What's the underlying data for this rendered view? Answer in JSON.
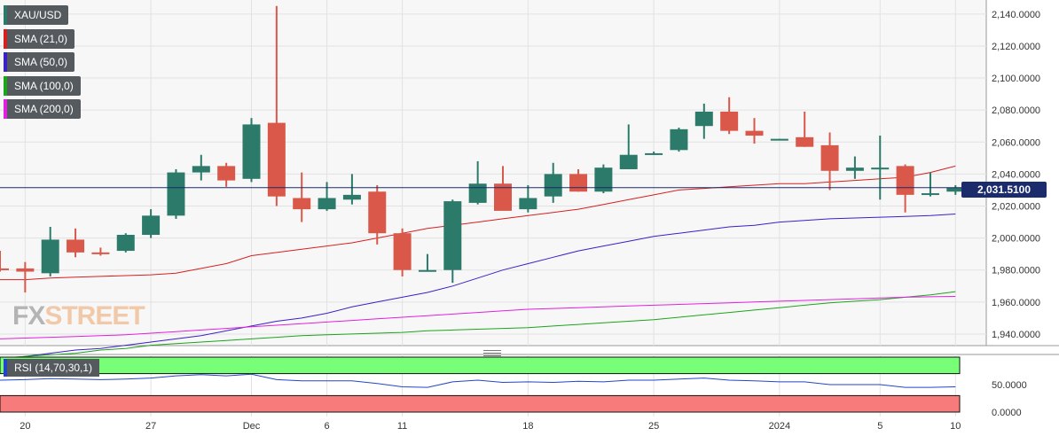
{
  "symbol": "XAU/USD",
  "indicators": [
    {
      "label": "SMA (21,0)",
      "color": "#d62020"
    },
    {
      "label": "SMA (50,0)",
      "color": "#3b1fc8"
    },
    {
      "label": "SMA (100,0)",
      "color": "#1aa51a"
    },
    {
      "label": "SMA (200,0)",
      "color": "#e020e0"
    }
  ],
  "rsi_label": "RSI (14,70,30,1)",
  "current_price_label": "2,031.5100",
  "watermark": {
    "part1": "FX",
    "part2": "STREET"
  },
  "colors": {
    "up": "#2b7a6a",
    "down": "#d9584a",
    "symbol_tag": "#2b7a6a",
    "rsi_line": "#2346c8",
    "rsi_overbought": "#77ff77",
    "rsi_oversold": "#f77b7b",
    "price_line": "#1b2b6b"
  },
  "chart_data": {
    "type": "candlestick",
    "ylim": [
      1930,
      2146
    ],
    "y_ticks": [
      1940,
      1960,
      1980,
      2000,
      2020,
      2040,
      2060,
      2080,
      2100,
      2120,
      2140
    ],
    "y_tick_labels": [
      "1,940.0000",
      "1,960.0000",
      "1,980.0000",
      "2,000.0000",
      "2,020.0000",
      "2,040.0000",
      "2,060.0000",
      "2,080.0000",
      "2,100.0000",
      "2,120.0000",
      "2,140.0000"
    ],
    "x_tick_labels": [
      {
        "label": "20",
        "index": 1
      },
      {
        "label": "27",
        "index": 6
      },
      {
        "label": "Dec",
        "index": 10
      },
      {
        "label": "6",
        "index": 13
      },
      {
        "label": "11",
        "index": 16
      },
      {
        "label": "18",
        "index": 21
      },
      {
        "label": "25",
        "index": 26
      },
      {
        "label": "2024",
        "index": 31
      },
      {
        "label": "5",
        "index": 35
      },
      {
        "label": "10",
        "index": 38
      }
    ],
    "candles": [
      {
        "o": 1981,
        "h": 1992,
        "l": 1979,
        "c": 1980
      },
      {
        "o": 1981,
        "h": 1985,
        "l": 1966,
        "c": 1979
      },
      {
        "o": 1978,
        "h": 2007,
        "l": 1976,
        "c": 1999
      },
      {
        "o": 1999,
        "h": 2006,
        "l": 1988,
        "c": 1991
      },
      {
        "o": 1991,
        "h": 1994,
        "l": 1989,
        "c": 1990
      },
      {
        "o": 1992,
        "h": 2003,
        "l": 1991,
        "c": 2002
      },
      {
        "o": 2002,
        "h": 2018,
        "l": 2000,
        "c": 2014
      },
      {
        "o": 2014,
        "h": 2043,
        "l": 2012,
        "c": 2041
      },
      {
        "o": 2041,
        "h": 2052,
        "l": 2036,
        "c": 2045
      },
      {
        "o": 2045,
        "h": 2047,
        "l": 2032,
        "c": 2036
      },
      {
        "o": 2037,
        "h": 2075,
        "l": 2035,
        "c": 2071
      },
      {
        "o": 2072,
        "h": 2145,
        "l": 2020,
        "c": 2026
      },
      {
        "o": 2025,
        "h": 2041,
        "l": 2010,
        "c": 2018
      },
      {
        "o": 2018,
        "h": 2035,
        "l": 2017,
        "c": 2025
      },
      {
        "o": 2024,
        "h": 2040,
        "l": 2021,
        "c": 2027
      },
      {
        "o": 2029,
        "h": 2033,
        "l": 1996,
        "c": 2003
      },
      {
        "o": 2003,
        "h": 2006,
        "l": 1976,
        "c": 1980
      },
      {
        "o": 1980,
        "h": 1990,
        "l": 1979,
        "c": 1980
      },
      {
        "o": 1980,
        "h": 2024,
        "l": 1972,
        "c": 2023
      },
      {
        "o": 2022,
        "h": 2048,
        "l": 2021,
        "c": 2034
      },
      {
        "o": 2034,
        "h": 2045,
        "l": 2018,
        "c": 2017
      },
      {
        "o": 2018,
        "h": 2033,
        "l": 2016,
        "c": 2025
      },
      {
        "o": 2026,
        "h": 2047,
        "l": 2022,
        "c": 2040
      },
      {
        "o": 2040,
        "h": 2043,
        "l": 2029,
        "c": 2029
      },
      {
        "o": 2029,
        "h": 2046,
        "l": 2028,
        "c": 2044
      },
      {
        "o": 2043,
        "h": 2071,
        "l": 2043,
        "c": 2052
      },
      {
        "o": 2053,
        "h": 2054,
        "l": 2052,
        "c": 2053
      },
      {
        "o": 2055,
        "h": 2069,
        "l": 2054,
        "c": 2068
      },
      {
        "o": 2070,
        "h": 2084,
        "l": 2062,
        "c": 2079
      },
      {
        "o": 2079,
        "h": 2088,
        "l": 2065,
        "c": 2067
      },
      {
        "o": 2067,
        "h": 2075,
        "l": 2059,
        "c": 2064
      },
      {
        "o": 2062,
        "h": 2062,
        "l": 2061,
        "c": 2062
      },
      {
        "o": 2063,
        "h": 2079,
        "l": 2057,
        "c": 2057
      },
      {
        "o": 2058,
        "h": 2066,
        "l": 2030,
        "c": 2042
      },
      {
        "o": 2042,
        "h": 2051,
        "l": 2037,
        "c": 2044
      },
      {
        "o": 2044,
        "h": 2064,
        "l": 2024,
        "c": 2044
      },
      {
        "o": 2045,
        "h": 2046,
        "l": 2016,
        "c": 2027
      },
      {
        "o": 2028,
        "h": 2041,
        "l": 2026,
        "c": 2028
      },
      {
        "o": 2029,
        "h": 2033,
        "l": 2027,
        "c": 2031.51
      }
    ],
    "series": [
      {
        "name": "SMA (21,0)",
        "color": "#d62020",
        "values": [
          1974,
          1974,
          1975,
          1975.5,
          1976,
          1976.5,
          1977,
          1978,
          1981,
          1984,
          1989,
          1991,
          1993,
          1995,
          1997,
          2000,
          2003,
          2006,
          2008,
          2010,
          2012,
          2014,
          2016,
          2018,
          2021,
          2024,
          2027,
          2030,
          2031,
          2032,
          2033,
          2034,
          2034,
          2035,
          2036,
          2037,
          2038,
          2041,
          2045
        ]
      },
      {
        "name": "SMA (50,0)",
        "color": "#3b1fc8",
        "values": [
          1924,
          1926,
          1928,
          1930,
          1931,
          1933,
          1935,
          1937,
          1939,
          1942,
          1945,
          1948,
          1950,
          1953,
          1957,
          1960,
          1963,
          1966,
          1970,
          1975,
          1980,
          1984,
          1988,
          1992,
          1995,
          1998,
          2001,
          2003,
          2005,
          2007,
          2008,
          2010,
          2011,
          2012,
          2012.5,
          2013,
          2013.5,
          2014,
          2015
        ]
      },
      {
        "name": "SMA (100,0)",
        "color": "#1aa51a",
        "values": [
          1925,
          1926,
          1927,
          1928,
          1930,
          1931,
          1933,
          1934,
          1935,
          1936,
          1937,
          1938,
          1939,
          1939.5,
          1940,
          1940.5,
          1941,
          1942,
          1942.5,
          1943,
          1943.5,
          1944,
          1945,
          1946,
          1947,
          1948,
          1949,
          1950.5,
          1952,
          1953.5,
          1955,
          1956.5,
          1958,
          1959.5,
          1960.5,
          1961.5,
          1963,
          1964.5,
          1966.5
        ]
      },
      {
        "name": "SMA (200,0)",
        "color": "#e020e0",
        "values": [
          1937,
          1937.5,
          1938,
          1938.5,
          1939,
          1939.5,
          1940.5,
          1941.5,
          1942.5,
          1943.5,
          1944.5,
          1945.5,
          1946.5,
          1947.5,
          1948.5,
          1949.5,
          1950.5,
          1951.5,
          1952.5,
          1953.5,
          1954.5,
          1955.5,
          1956,
          1956.5,
          1957,
          1957.5,
          1958,
          1958.5,
          1959,
          1959.5,
          1960,
          1960.5,
          1961,
          1961.5,
          1962,
          1962.5,
          1963,
          1963.3,
          1963.5
        ]
      }
    ],
    "rsi": {
      "ylim": [
        0,
        100
      ],
      "y_ticks": [
        0,
        50
      ],
      "y_tick_labels": [
        "0.0000",
        "50.0000"
      ],
      "levels": [
        70,
        30
      ],
      "values": [
        58,
        59,
        61,
        60,
        59,
        60,
        62,
        66,
        68,
        66,
        69,
        59,
        57,
        57,
        57,
        52,
        46,
        45,
        55,
        58,
        54,
        55,
        54,
        56,
        55,
        58,
        58,
        60,
        62,
        58,
        57,
        55,
        55,
        50,
        50,
        50,
        45,
        45,
        46
      ]
    }
  }
}
